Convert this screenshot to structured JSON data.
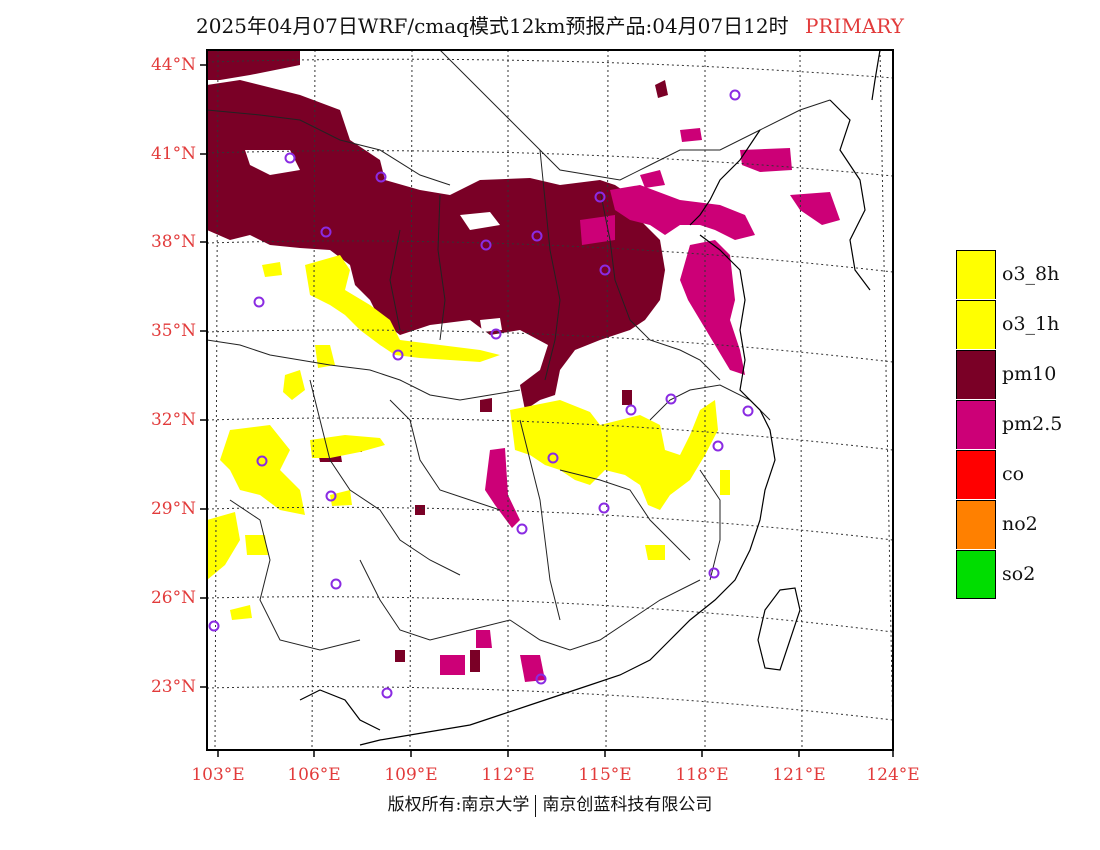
{
  "title": {
    "text": "2025年04月07日WRF/cmaq模式12km预报产品:04月07日12时",
    "tag": "PRIMARY"
  },
  "axes": {
    "lat_labels": [
      "44°N",
      "41°N",
      "38°N",
      "35°N",
      "32°N",
      "29°N",
      "26°N",
      "23°N"
    ],
    "lon_labels": [
      "103°E",
      "106°E",
      "109°E",
      "112°E",
      "115°E",
      "118°E",
      "121°E",
      "124°E"
    ]
  },
  "legend": {
    "items": [
      {
        "label": "o3_8h",
        "color": "#ffff00"
      },
      {
        "label": "o3_1h",
        "color": "#ffff00"
      },
      {
        "label": "pm10",
        "color": "#7a0026"
      },
      {
        "label": "pm2.5",
        "color": "#cc0077"
      },
      {
        "label": "co",
        "color": "#ff0000"
      },
      {
        "label": "no2",
        "color": "#ff8000"
      },
      {
        "label": "so2",
        "color": "#00dd00"
      }
    ]
  },
  "footer": {
    "left": "版权所有:南京大学",
    "right": "南京创蓝科技有限公司"
  },
  "colors": {
    "label_red": "#e23b3b",
    "station_marker": "#8a2be2",
    "pm10": "#7a0026",
    "pm25": "#cc0077",
    "o3": "#ffff00"
  }
}
